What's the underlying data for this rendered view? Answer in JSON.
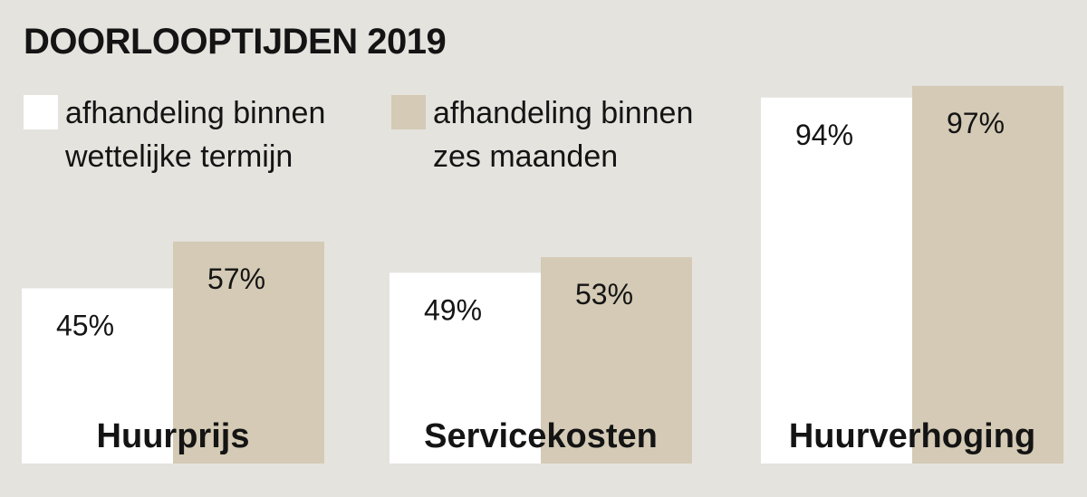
{
  "title": "DOORLOOPTIJDEN 2019",
  "colors": {
    "background": "#e4e3de",
    "series1": "#ffffff",
    "series2": "#d4cab5",
    "text": "#141414"
  },
  "legend": [
    {
      "label": "afhandeling binnen wettelijke termijn",
      "color": "#ffffff"
    },
    {
      "label": "afhandeling binnen zes maanden",
      "color": "#d4cab5"
    }
  ],
  "chart_data": {
    "type": "bar",
    "title": "DOORLOOPTIJDEN 2019",
    "categories": [
      "Huurprijs",
      "Servicekosten",
      "Huurverhoging"
    ],
    "series": [
      {
        "name": "afhandeling binnen wettelijke termijn",
        "values": [
          45,
          49,
          94
        ],
        "labels": [
          "45%",
          "49%",
          "94%"
        ]
      },
      {
        "name": "afhandeling binnen zes maanden",
        "values": [
          57,
          53,
          97
        ],
        "labels": [
          "57%",
          "53%",
          "97%"
        ]
      }
    ],
    "ylim": [
      0,
      100
    ],
    "unit": "%",
    "grid": false,
    "legend_position": "top-left"
  }
}
